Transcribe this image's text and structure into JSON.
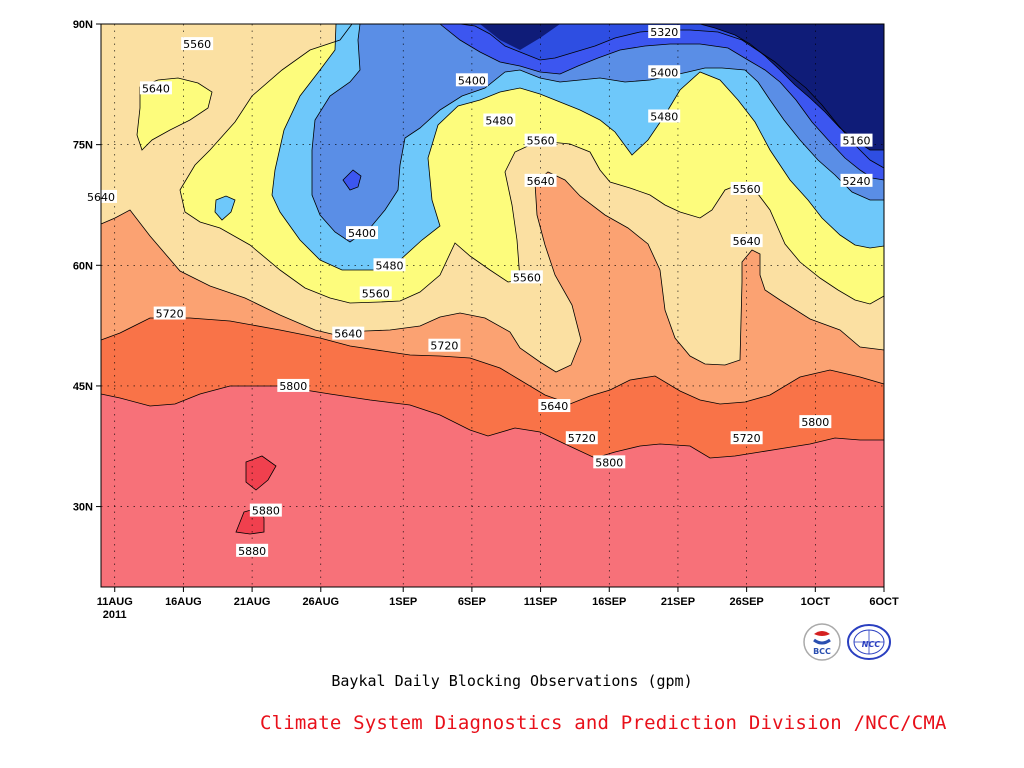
{
  "chart_data": {
    "type": "contour",
    "title": "Baykal Daily Blocking Observations (gpm)",
    "x_ticks": [
      "11AUG",
      "16AUG",
      "21AUG",
      "26AUG",
      "1SEP",
      "6SEP",
      "11SEP",
      "16SEP",
      "21SEP",
      "26SEP",
      "1OCT",
      "6OCT"
    ],
    "x_year_label": "2011",
    "y_ticks": [
      "90N",
      "75N",
      "60N",
      "45N",
      "30N"
    ],
    "x_range": [
      "2011-08-10",
      "2011-10-06"
    ],
    "y_range": [
      20,
      90
    ],
    "grid": "dotted",
    "levels": [
      5160,
      5240,
      5320,
      5400,
      5480,
      5560,
      5640,
      5720,
      5800,
      5880
    ],
    "fill_colors": {
      "below_5160": "#0f1c78",
      "5160_5240": "#2e4ee2",
      "5240_5320": "#3c56f0",
      "5320_5400": "#5a8ee6",
      "5400_5480": "#6ec8fa",
      "5480_5560": "#fdfc7c",
      "5560_5640": "#fbe0a2",
      "5640_5720": "#fba272",
      "5720_5800": "#f97348",
      "5800_5880": "#f77179",
      "above_5880": "#f0404e"
    },
    "contour_labels": [
      {
        "text": "5320",
        "date": "2011-09-20",
        "lat": 89
      },
      {
        "text": "5400",
        "date": "2011-09-20",
        "lat": 84
      },
      {
        "text": "5480",
        "date": "2011-09-20",
        "lat": 78.5
      },
      {
        "text": "5560",
        "date": "2011-08-17",
        "lat": 87.5
      },
      {
        "text": "5640",
        "date": "2011-08-14",
        "lat": 82
      },
      {
        "text": "5400",
        "date": "2011-09-06",
        "lat": 83
      },
      {
        "text": "5480",
        "date": "2011-09-08",
        "lat": 78
      },
      {
        "text": "5560",
        "date": "2011-09-11",
        "lat": 75.5
      },
      {
        "text": "5640",
        "date": "2011-09-11",
        "lat": 70.5
      },
      {
        "text": "5160",
        "date": "2011-10-04",
        "lat": 75.5
      },
      {
        "text": "5240",
        "date": "2011-10-04",
        "lat": 70.5
      },
      {
        "text": "5560",
        "date": "2011-09-26",
        "lat": 69.5
      },
      {
        "text": "5640",
        "date": "2011-09-26",
        "lat": 63
      },
      {
        "text": "5640",
        "date": "2011-08-10",
        "lat": 68.5
      },
      {
        "text": "5400",
        "date": "2011-08-29",
        "lat": 64
      },
      {
        "text": "5480",
        "date": "2011-08-31",
        "lat": 60
      },
      {
        "text": "5560",
        "date": "2011-08-30",
        "lat": 56.5
      },
      {
        "text": "5560",
        "date": "2011-09-10",
        "lat": 58.5
      },
      {
        "text": "5720",
        "date": "2011-08-15",
        "lat": 54
      },
      {
        "text": "5640",
        "date": "2011-08-28",
        "lat": 51.5
      },
      {
        "text": "5720",
        "date": "2011-09-04",
        "lat": 50
      },
      {
        "text": "5640",
        "date": "2011-09-12",
        "lat": 42.5
      },
      {
        "text": "5720",
        "date": "2011-09-14",
        "lat": 38.5
      },
      {
        "text": "5800",
        "date": "2011-08-24",
        "lat": 45
      },
      {
        "text": "5800",
        "date": "2011-09-16",
        "lat": 35.5
      },
      {
        "text": "5720",
        "date": "2011-09-26",
        "lat": 38.5
      },
      {
        "text": "5800",
        "date": "2011-10-01",
        "lat": 40.5
      },
      {
        "text": "5880",
        "date": "2011-08-22",
        "lat": 29.5
      },
      {
        "text": "5880",
        "date": "2011-08-21",
        "lat": 24.5
      }
    ]
  },
  "caption": "Baykal Daily Blocking Observations (gpm)",
  "credit": "Climate System Diagnostics and Prediction Division /NCC/CMA",
  "logos": {
    "left_text": "BCC",
    "right_text": "NCC"
  }
}
